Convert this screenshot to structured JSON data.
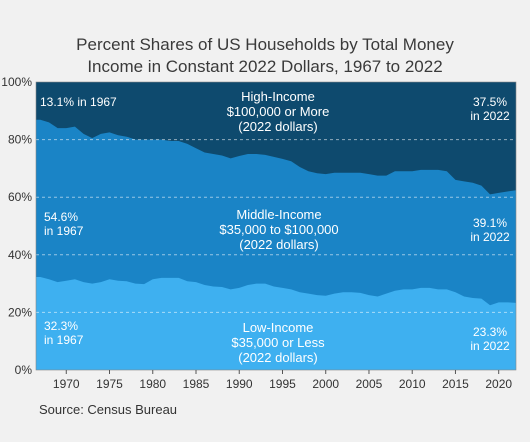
{
  "chart_data": {
    "type": "area",
    "title_line1": "Percent Shares of US Households by Total Money",
    "title_line2": "Income in Constant 2022 Dollars, 1967 to 2022",
    "x": [
      1967,
      1968,
      1969,
      1970,
      1971,
      1972,
      1973,
      1974,
      1975,
      1976,
      1977,
      1978,
      1979,
      1980,
      1981,
      1982,
      1983,
      1984,
      1985,
      1986,
      1987,
      1988,
      1989,
      1990,
      1991,
      1992,
      1993,
      1994,
      1995,
      1996,
      1997,
      1998,
      1999,
      2000,
      2001,
      2002,
      2003,
      2004,
      2005,
      2006,
      2007,
      2008,
      2009,
      2010,
      2011,
      2012,
      2013,
      2014,
      2015,
      2016,
      2017,
      2018,
      2019,
      2020,
      2021,
      2022
    ],
    "series": [
      {
        "name": "Low-Income",
        "values": [
          32.3,
          31.5,
          30.5,
          31.0,
          31.5,
          30.5,
          30.0,
          30.5,
          31.5,
          31.0,
          30.8,
          30.0,
          29.8,
          31.5,
          32.0,
          32.0,
          32.0,
          30.8,
          30.5,
          29.5,
          29.0,
          28.8,
          28.0,
          28.5,
          29.5,
          30.0,
          30.0,
          29.0,
          28.5,
          28.0,
          27.0,
          26.5,
          26.0,
          25.8,
          26.5,
          27.0,
          27.0,
          26.8,
          26.0,
          25.5,
          26.5,
          27.5,
          28.0,
          28.0,
          28.5,
          28.5,
          28.0,
          28.0,
          27.0,
          25.5,
          25.0,
          24.8,
          22.5,
          23.5,
          23.5,
          23.3
        ]
      },
      {
        "name": "Middle-Income",
        "values": [
          54.6,
          54.5,
          53.5,
          53.0,
          53.0,
          51.5,
          50.5,
          51.5,
          51.0,
          50.5,
          50.2,
          50.0,
          50.2,
          48.5,
          48.0,
          47.5,
          47.5,
          47.7,
          46.5,
          46.0,
          46.0,
          45.7,
          45.5,
          45.8,
          45.5,
          45.0,
          44.7,
          45.0,
          44.8,
          44.5,
          43.5,
          42.5,
          42.3,
          42.2,
          42.0,
          41.5,
          41.5,
          41.7,
          42.0,
          42.0,
          41.0,
          41.5,
          41.0,
          41.0,
          41.0,
          41.0,
          41.5,
          41.0,
          39.0,
          40.0,
          40.0,
          39.2,
          38.5,
          38.0,
          38.5,
          39.1
        ]
      },
      {
        "name": "High-Income",
        "values": [
          13.1,
          14.0,
          16.0,
          16.0,
          15.5,
          18.0,
          19.5,
          18.0,
          17.5,
          18.5,
          19.0,
          20.0,
          20.0,
          20.0,
          20.0,
          20.5,
          20.5,
          21.5,
          23.0,
          24.5,
          25.0,
          25.5,
          26.5,
          25.7,
          25.0,
          25.0,
          25.3,
          26.0,
          26.7,
          27.5,
          29.5,
          31.0,
          31.7,
          32.0,
          31.5,
          31.5,
          31.5,
          31.5,
          32.0,
          32.5,
          32.5,
          31.0,
          31.0,
          31.0,
          30.5,
          30.5,
          30.5,
          31.0,
          34.0,
          34.5,
          35.0,
          36.0,
          39.0,
          38.5,
          38.0,
          37.5
        ]
      }
    ],
    "colors": {
      "low": "#3eb0f0",
      "middle": "#1a84c6",
      "high": "#0e4a6e",
      "background": "#f1f1f1"
    },
    "xlim": [
      1966.5,
      2022
    ],
    "ylim": [
      0,
      100
    ],
    "x_ticks": [
      1970,
      1975,
      1980,
      1985,
      1990,
      1995,
      2000,
      2005,
      2010,
      2015,
      2020
    ],
    "y_ticks": [
      0,
      20,
      40,
      60,
      80,
      100
    ],
    "y_tick_labels": [
      "0%",
      "20%",
      "40%",
      "60%",
      "80%",
      "100%"
    ],
    "grid": "horizontal dashed",
    "annotations": {
      "high_left": "13.1% in 1967",
      "high_center": [
        "High-Income",
        "$100,000 or More",
        "(2022 dollars)"
      ],
      "high_right": [
        "37.5%",
        "in 2022"
      ],
      "mid_left": [
        "54.6%",
        "in 1967"
      ],
      "mid_center": [
        "Middle-Income",
        "$35,000 to $100,000",
        "(2022 dollars)"
      ],
      "mid_right": [
        "39.1%",
        "in 2022"
      ],
      "low_left": [
        "32.3%",
        "in 1967"
      ],
      "low_center": [
        "Low-Income",
        "$35,000 or Less",
        "(2022 dollars)"
      ],
      "low_right": [
        "23.3%",
        "in 2022"
      ]
    },
    "source": "Source: Census Bureau"
  }
}
